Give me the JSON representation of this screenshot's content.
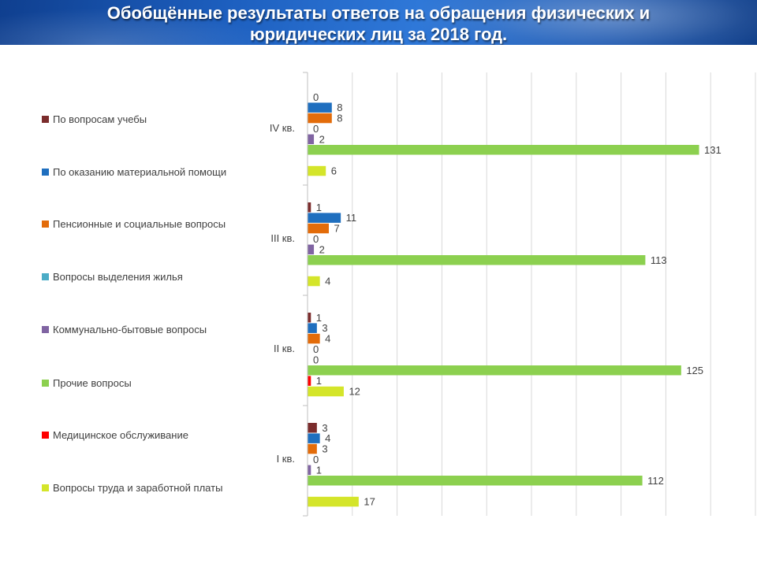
{
  "header": {
    "title_line1": "Обобщённые результаты ответов на обращения физических и",
    "title_line2": "юридических лиц за 2018 год."
  },
  "chart_data": {
    "type": "bar",
    "orientation": "horizontal",
    "title": "Обобщённые результаты ответов на обращения физических и юридических лиц за 2018 год.",
    "categories": [
      "IV кв.",
      "III кв.",
      "II кв.",
      "I кв."
    ],
    "xlim": [
      0,
      150
    ],
    "grid": true,
    "legend_position": "left",
    "series": [
      {
        "name": "По вопросам учебы",
        "color": "#7b2c2c",
        "values": [
          0,
          1,
          1,
          3
        ]
      },
      {
        "name": "По оказанию материальной помощи",
        "color": "#1f6fbf",
        "values": [
          8,
          11,
          3,
          4
        ]
      },
      {
        "name": "Пенсионные и социальные вопросы",
        "color": "#e36c0a",
        "values": [
          8,
          7,
          4,
          3
        ]
      },
      {
        "name": "Вопросы выделения жилья",
        "color": "#4bacc6",
        "values": [
          0,
          0,
          0,
          0
        ]
      },
      {
        "name": "Коммунально-бытовые вопросы",
        "color": "#8064a2",
        "values": [
          2,
          2,
          0,
          1
        ]
      },
      {
        "name": "Прочие вопросы",
        "color": "#8cd04f",
        "values": [
          131,
          113,
          125,
          112
        ]
      },
      {
        "name": "Медицинское обслуживание",
        "color": "#ff0000",
        "values": [
          null,
          null,
          1,
          null
        ]
      },
      {
        "name": "Вопросы труда и заработной платы",
        "color": "#d4e52a",
        "values": [
          6,
          4,
          12,
          17
        ]
      }
    ]
  }
}
